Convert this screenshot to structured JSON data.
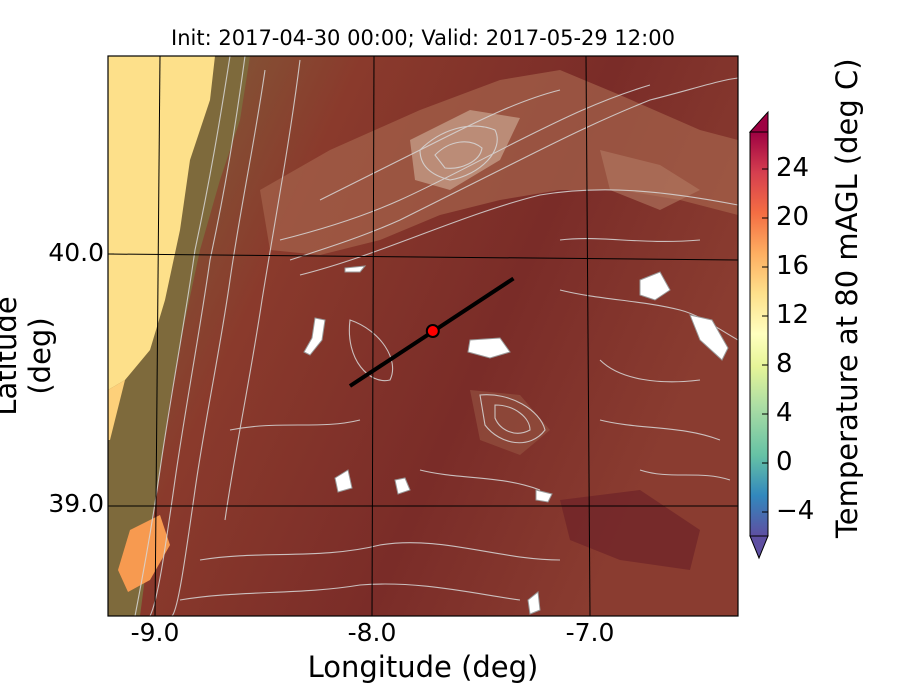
{
  "title": "Init: 2017-04-30 00:00; Valid: 2017-05-29 12:00",
  "xlabel": "Longitude (deg)",
  "ylabel": "Latitude (deg)",
  "xticks": [
    "-9.0",
    "-8.0",
    "-7.0"
  ],
  "yticks": [
    "40.0",
    "39.0"
  ],
  "colorbar": {
    "label": "Temperature at 80 mAGL (deg C)",
    "ticks": [
      "24",
      "20",
      "16",
      "12",
      "8",
      "4",
      "0",
      "−4"
    ],
    "min": -7,
    "max": 27,
    "colormap": "Spectral_r",
    "extend": "both"
  },
  "map": {
    "lon_range": [
      -9.23,
      -6.34
    ],
    "lat_range": [
      38.56,
      40.8
    ],
    "ocean_color": "#fde08a",
    "land_color": "#7a2f2a",
    "contour_color": "#d8d8d8"
  },
  "cross_section_line": {
    "start": {
      "lon": -8.12,
      "lat": 39.48
    },
    "end": {
      "lon": -7.37,
      "lat": 39.91
    }
  },
  "point_marker": {
    "lon": -7.74,
    "lat": 39.7,
    "color": "#ff0000"
  }
}
